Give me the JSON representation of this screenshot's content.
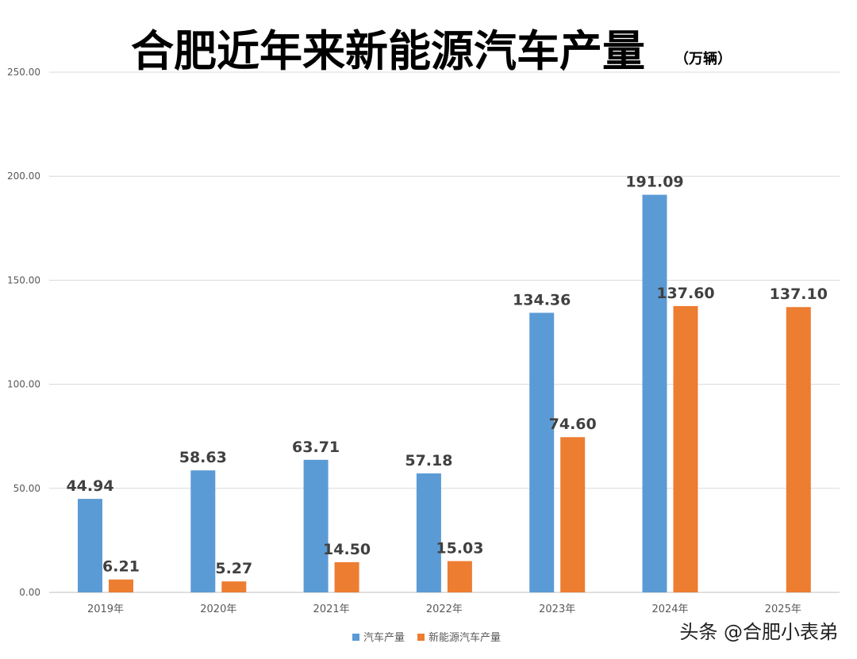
{
  "chart_data": {
    "type": "bar",
    "title": "合肥近年来新能源汽车产量",
    "unit": "（万辆）",
    "categories": [
      "2019年",
      "2020年",
      "2021年",
      "2022年",
      "2023年",
      "2024年",
      "2025年"
    ],
    "series": [
      {
        "name": "汽车产量",
        "values": [
          44.94,
          58.63,
          63.71,
          57.18,
          134.36,
          191.09,
          null
        ],
        "labels": [
          "44.94",
          "58.63",
          "63.71",
          "57.18",
          "134.36",
          "191.09",
          null
        ]
      },
      {
        "name": "新能源汽车产量",
        "values": [
          6.21,
          5.27,
          14.5,
          15.03,
          74.6,
          137.6,
          137.1
        ],
        "labels": [
          "6.21",
          "5.27",
          "14.50",
          "15.03",
          "74.60",
          "137.60",
          "137.10"
        ]
      }
    ],
    "yticks": [
      "0.00",
      "50.00",
      "100.00",
      "150.00",
      "200.00",
      "250.00"
    ],
    "ylim": [
      0,
      250
    ],
    "xlabel": "",
    "ylabel": "",
    "grid": true,
    "legend": "bottom-center"
  },
  "colors": {
    "series1": "#5b9bd5",
    "series2": "#ed7d31",
    "title": "#e00000",
    "grid": "#d9d9d9"
  },
  "watermark": "头条 @合肥小表弟"
}
